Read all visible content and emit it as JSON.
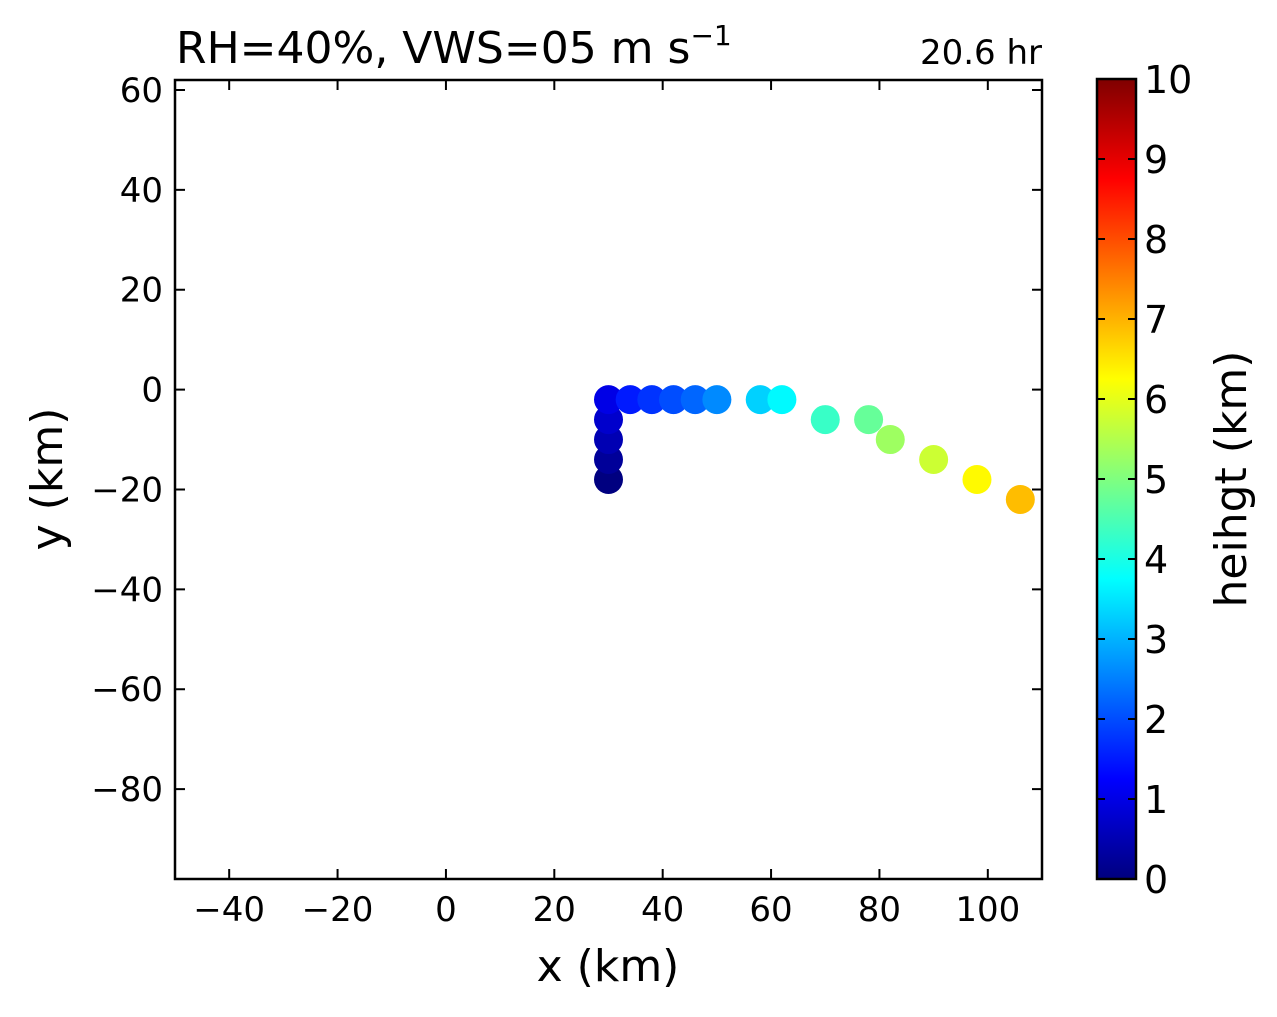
{
  "chart_data": {
    "type": "scatter",
    "title": "RH=40%, VWS=05 m s",
    "title_superscript": "−1",
    "annotation": {
      "text": "20.6 hr",
      "color": "#0000ff",
      "placement": "top-right"
    },
    "xlabel": "x (km)",
    "ylabel": "y (km)",
    "xlim": [
      -50,
      110
    ],
    "ylim": [
      -98,
      62
    ],
    "xticks": [
      -40,
      -20,
      0,
      20,
      40,
      60,
      80,
      100
    ],
    "xtick_labels": [
      "−40",
      "−20",
      "0",
      "20",
      "40",
      "60",
      "80",
      "100"
    ],
    "yticks": [
      60,
      40,
      20,
      0,
      -20,
      -40,
      -60,
      -80
    ],
    "ytick_labels": [
      "60",
      "40",
      "20",
      "0",
      "−20",
      "−40",
      "−60",
      "−80"
    ],
    "grid": false,
    "colorbar": {
      "label": "heihgt (km)",
      "colormap": "jet",
      "range": [
        0,
        10
      ],
      "ticks": [
        0,
        1,
        2,
        3,
        4,
        5,
        6,
        7,
        8,
        9,
        10
      ],
      "tick_labels": [
        "0",
        "1",
        "2",
        "3",
        "4",
        "5",
        "6",
        "7",
        "8",
        "9",
        "10"
      ]
    },
    "points": [
      {
        "x": 30,
        "y": -18,
        "height": 0.0
      },
      {
        "x": 30,
        "y": -14,
        "height": 0.25
      },
      {
        "x": 30,
        "y": -10,
        "height": 0.5
      },
      {
        "x": 30,
        "y": -6,
        "height": 0.75
      },
      {
        "x": 30,
        "y": -2,
        "height": 1.0
      },
      {
        "x": 34,
        "y": -2,
        "height": 1.5
      },
      {
        "x": 38,
        "y": -2,
        "height": 1.75
      },
      {
        "x": 42,
        "y": -2,
        "height": 2.0
      },
      {
        "x": 46,
        "y": -2,
        "height": 2.25
      },
      {
        "x": 50,
        "y": -2,
        "height": 2.6
      },
      {
        "x": 58,
        "y": -2,
        "height": 3.3
      },
      {
        "x": 62,
        "y": -2,
        "height": 3.7
      },
      {
        "x": 70,
        "y": -6,
        "height": 4.3
      },
      {
        "x": 78,
        "y": -6,
        "height": 4.75
      },
      {
        "x": 82,
        "y": -10,
        "height": 5.3
      },
      {
        "x": 90,
        "y": -14,
        "height": 5.75
      },
      {
        "x": 98,
        "y": -18,
        "height": 6.3
      },
      {
        "x": 106,
        "y": -22,
        "height": 6.9
      }
    ]
  }
}
